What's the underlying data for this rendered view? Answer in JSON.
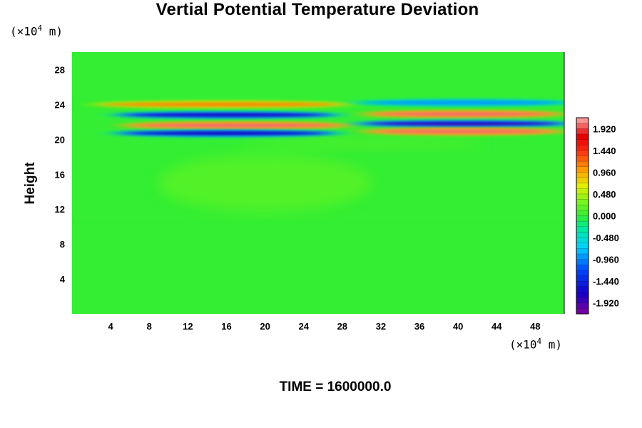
{
  "chart_data": {
    "type": "heatmap",
    "title": "Vertial Potential Temperature Deviation",
    "ylabel": "Height",
    "xlabel": "",
    "x_unit_prefix": "(×10",
    "x_unit_exp": "4",
    "x_unit_suffix": " m)",
    "y_unit_prefix": "(×10",
    "y_unit_exp": "4",
    "y_unit_suffix": " m)",
    "x_ticks": [
      "4",
      "8",
      "12",
      "16",
      "20",
      "24",
      "28",
      "32",
      "36",
      "40",
      "44",
      "48"
    ],
    "y_ticks": [
      "4",
      "8",
      "12",
      "16",
      "20",
      "24",
      "28"
    ],
    "xlim": [
      0,
      51
    ],
    "ylim": [
      0,
      30
    ],
    "colorbar": {
      "min": -2.16,
      "max": 2.16,
      "labels": [
        "1.920",
        "1.440",
        "0.960",
        "0.480",
        "0.000",
        "-0.480",
        "-0.960",
        "-1.440",
        "-1.920"
      ],
      "label_values": [
        1.92,
        1.44,
        0.96,
        0.48,
        0.0,
        -0.48,
        -0.96,
        -1.44,
        -1.92
      ]
    },
    "features": [
      {
        "x_range": [
          3,
          28
        ],
        "y_center": 24.0,
        "value": 1.1
      },
      {
        "x_range": [
          5,
          27
        ],
        "y_center": 22.8,
        "value": -1.7
      },
      {
        "x_range": [
          6,
          28
        ],
        "y_center": 21.6,
        "value": 2.0
      },
      {
        "x_range": [
          5,
          27
        ],
        "y_center": 20.7,
        "value": -1.7
      },
      {
        "x_range": [
          30,
          51
        ],
        "y_center": 24.2,
        "value": -0.9
      },
      {
        "x_range": [
          31,
          50
        ],
        "y_center": 22.9,
        "value": 2.0
      },
      {
        "x_range": [
          30,
          51
        ],
        "y_center": 21.8,
        "value": -1.8
      },
      {
        "x_range": [
          31,
          50
        ],
        "y_center": 20.9,
        "value": 2.0
      }
    ]
  },
  "footer": "TIME = 1600000.0"
}
